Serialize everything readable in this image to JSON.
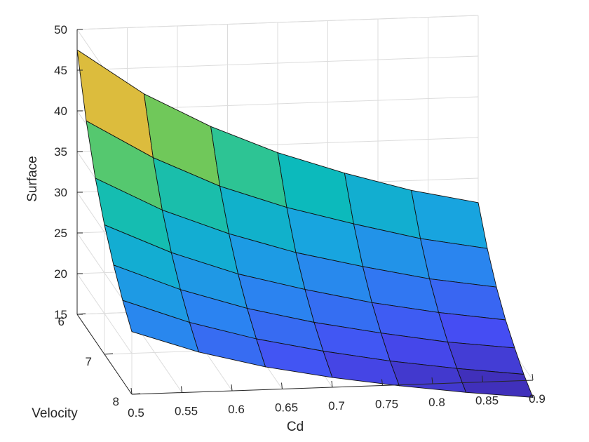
{
  "chart_data": {
    "type": "surface",
    "xlabel": "Cd",
    "ylabel": "Velocity",
    "zlabel": "Surface",
    "x_ticks": [
      "0.5",
      "0.55",
      "0.6",
      "0.65",
      "0.7",
      "0.75",
      "0.8",
      "0.85",
      "0.9"
    ],
    "y_ticks": [
      "6",
      "7",
      "8"
    ],
    "z_ticks": [
      "15",
      "20",
      "25",
      "30",
      "35",
      "40",
      "45",
      "50"
    ],
    "xlim": [
      0.5,
      0.9
    ],
    "ylim": [
      6,
      8
    ],
    "zlim": [
      15,
      50
    ],
    "grid": true,
    "colormap": "parula",
    "x": [
      0.5,
      0.5667,
      0.6333,
      0.7,
      0.7667,
      0.8333,
      0.9
    ],
    "y": [
      6.0,
      6.333,
      6.667,
      7.0,
      7.333,
      7.667,
      8.0
    ],
    "z": [
      [
        47.5,
        41.8,
        37.5,
        34.0,
        31.2,
        28.8,
        27.0
      ],
      [
        40.4,
        35.6,
        31.8,
        28.9,
        26.6,
        24.5,
        23.0
      ],
      [
        35.0,
        30.8,
        27.6,
        25.0,
        23.0,
        21.2,
        19.9
      ],
      [
        30.9,
        27.2,
        24.3,
        22.1,
        20.2,
        18.7,
        17.5
      ],
      [
        27.6,
        24.3,
        21.7,
        19.7,
        18.1,
        16.7,
        15.7
      ],
      [
        24.9,
        21.9,
        19.6,
        17.8,
        16.3,
        15.1,
        14.1
      ],
      [
        22.7,
        19.9,
        17.8,
        16.2,
        14.9,
        13.8,
        12.9
      ]
    ]
  }
}
